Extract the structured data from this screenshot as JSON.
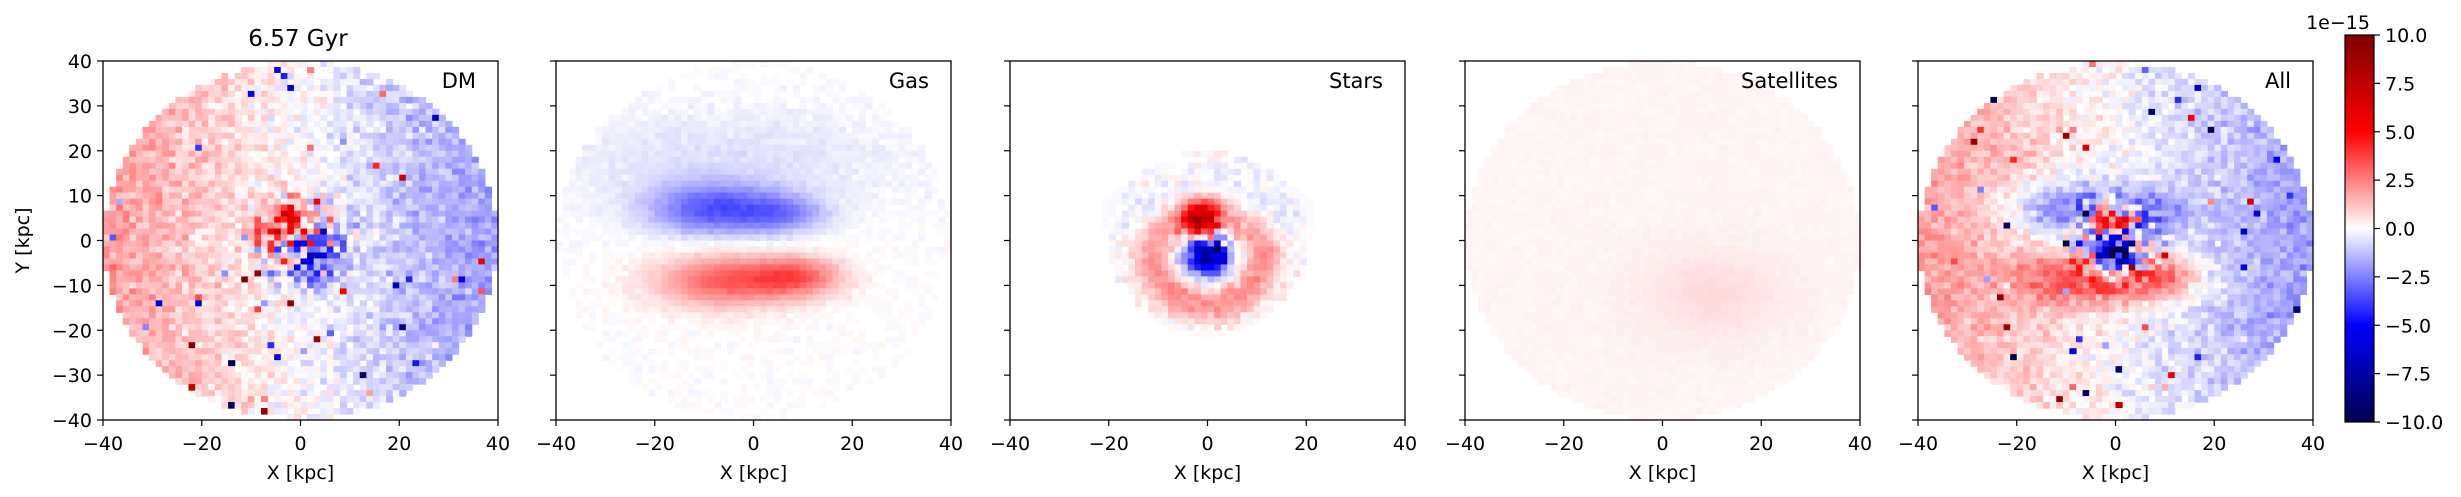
{
  "figure": {
    "title": "6.57 Gyr",
    "colorbar": {
      "offset_label": "1e−15",
      "vmin": -10.0,
      "vmax": 10.0,
      "ticks": [
        -10.0,
        -7.5,
        -5.0,
        -2.5,
        0.0,
        2.5,
        5.0,
        7.5,
        10.0
      ],
      "tick_labels": [
        "−10.0",
        "−7.5",
        "−5.0",
        "−2.5",
        "0.0",
        "2.5",
        "5.0",
        "7.5",
        "10.0"
      ],
      "colormap": "seismic",
      "colormap_colors": [
        "#00004c",
        "#0000ff",
        "#ffffff",
        "#ff0000",
        "#7f0000"
      ]
    }
  },
  "chart_data": [
    {
      "type": "heatmap",
      "label": "DM",
      "xlabel": "X [kpc]",
      "ylabel": "Y [kpc]",
      "xlim": [
        -40,
        40
      ],
      "ylim": [
        -40,
        40
      ],
      "x_ticks": [
        -40,
        -20,
        0,
        20,
        40
      ],
      "x_tick_labels": [
        "−40",
        "−20",
        "0",
        "20",
        "40"
      ],
      "y_ticks": [
        -40,
        -30,
        -20,
        -10,
        0,
        10,
        20,
        30,
        40
      ],
      "y_tick_labels": [
        "−40",
        "−30",
        "−20",
        "−10",
        "0",
        "10",
        "20",
        "30",
        "40"
      ],
      "data_radius_kpc": 40,
      "pattern": "noisy red on left (x<0), blue on right (x>0), strong red/blue clump near center"
    },
    {
      "type": "heatmap",
      "label": "Gas",
      "xlabel": "X [kpc]",
      "xlim": [
        -40,
        40
      ],
      "ylim": [
        -40,
        40
      ],
      "x_ticks": [
        -40,
        -20,
        0,
        20,
        40
      ],
      "x_tick_labels": [
        "−40",
        "−20",
        "0",
        "20",
        "40"
      ],
      "data_radius_kpc": 40,
      "pattern": "smooth blue band at y~8 kpc, red band at y~-8 kpc, x from -25 to 15 kpc"
    },
    {
      "type": "heatmap",
      "label": "Stars",
      "xlabel": "X [kpc]",
      "xlim": [
        -40,
        40
      ],
      "ylim": [
        -40,
        40
      ],
      "x_ticks": [
        -40,
        -20,
        0,
        20,
        40
      ],
      "x_tick_labels": [
        "−40",
        "−20",
        "0",
        "20",
        "40"
      ],
      "data_radius_kpc": 40,
      "pattern": "compact dark red core at y>0 and dark blue core at y<0 near center, red ring below"
    },
    {
      "type": "heatmap",
      "label": "Satellites",
      "xlabel": "X [kpc]",
      "xlim": [
        -40,
        40
      ],
      "ylim": [
        -40,
        40
      ],
      "x_ticks": [
        -40,
        -20,
        0,
        20,
        40
      ],
      "x_tick_labels": [
        "−40",
        "−20",
        "0",
        "20",
        "40"
      ],
      "data_radius_kpc": 40,
      "pattern": "nearly white, faint pink blob at x~10, y~-12 kpc"
    },
    {
      "type": "heatmap",
      "label": "All",
      "xlabel": "X [kpc]",
      "xlim": [
        -40,
        40
      ],
      "ylim": [
        -40,
        40
      ],
      "x_ticks": [
        -40,
        -20,
        0,
        20,
        40
      ],
      "x_tick_labels": [
        "−40",
        "−20",
        "0",
        "20",
        "40"
      ],
      "data_radius_kpc": 40,
      "pattern": "sum: noisy disk, red left / blue right, blue band above center, red band below, strong central clump"
    }
  ]
}
